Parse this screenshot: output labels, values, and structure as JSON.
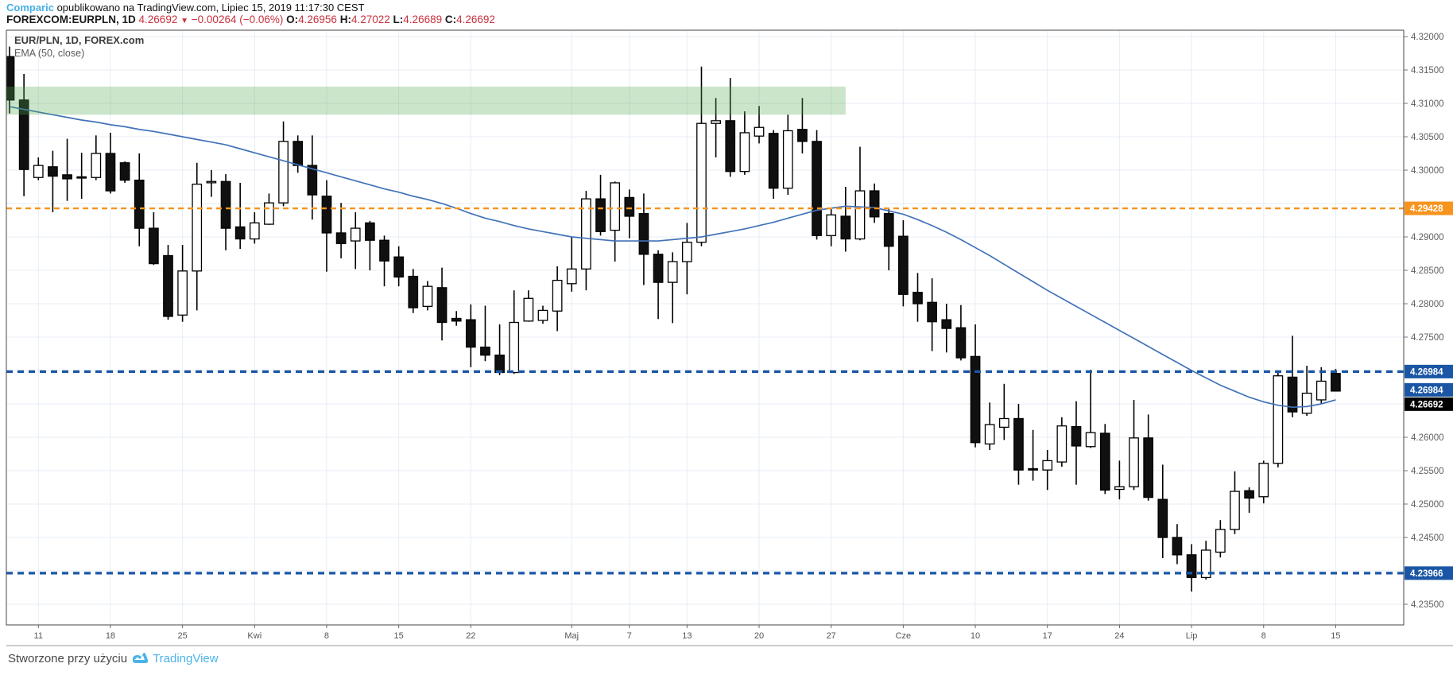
{
  "header": {
    "source_bold": "Comparic",
    "source_rest": " opublikowano na TradingView.com, Lipiec 15, 2019 11:17:30 CEST",
    "symbol_label": "FOREXCOM:EURPLN, 1D",
    "last_price": "4.26692",
    "direction_icon": "▼",
    "change": "−0.00264 (−0.06%)",
    "o_label": "O:",
    "o_value": "4.26956",
    "h_label": "H:",
    "h_value": "4.27022",
    "l_label": "L:",
    "l_value": "4.26689",
    "c_label": "C:",
    "c_value": "4.26692"
  },
  "legend": {
    "title": "EUR/PLN, 1D, FOREX.com",
    "indicator": "EMA (50, close)"
  },
  "footer": {
    "created_with": "Stworzone przy użyciu",
    "brand": "TradingView"
  },
  "colors": {
    "accent_red": "#c9313d",
    "comparic_blue": "#45b0e6",
    "tv_blue": "#4cb3ea",
    "orange_level": "#f7941e",
    "blue_level": "#1a56a5",
    "last_price_bg": "#000000",
    "ema_blue": "#4272b8",
    "grid": "#e7edf4",
    "frame": "#454545",
    "candle_up_fill": "#ffffff",
    "candle_down_fill": "#101010",
    "candle_stroke": "#000000",
    "zone_green": "rgba(80,170,80,0.30)",
    "axis_text": "#5f5f5f",
    "date_text": "#555555"
  },
  "chart_data": {
    "type": "candlestick",
    "title": "EUR/PLN, 1D, FOREX.com",
    "indicator": "EMA (50, close)",
    "ylim": [
      4.235,
      4.32
    ],
    "y_ticks": [
      4.32,
      4.315,
      4.31,
      4.305,
      4.3,
      4.295,
      4.29,
      4.285,
      4.28,
      4.275,
      4.27,
      4.265,
      4.26,
      4.255,
      4.25,
      4.245,
      4.24,
      4.235
    ],
    "y_ticks_hidden_by_labels": [
      4.295,
      4.27,
      4.265,
      4.24
    ],
    "x_labels": [
      {
        "index": 2,
        "text": "11"
      },
      {
        "index": 7,
        "text": "18"
      },
      {
        "index": 12,
        "text": "25"
      },
      {
        "index": 17,
        "text": "Kwi"
      },
      {
        "index": 22,
        "text": "8"
      },
      {
        "index": 27,
        "text": "15"
      },
      {
        "index": 32,
        "text": "22"
      },
      {
        "index": 39,
        "text": "Maj"
      },
      {
        "index": 43,
        "text": "7"
      },
      {
        "index": 47,
        "text": "13"
      },
      {
        "index": 52,
        "text": "20"
      },
      {
        "index": 57,
        "text": "27"
      },
      {
        "index": 62,
        "text": "Cze"
      },
      {
        "index": 67,
        "text": "10"
      },
      {
        "index": 72,
        "text": "17"
      },
      {
        "index": 77,
        "text": "24"
      },
      {
        "index": 82,
        "text": "Lip"
      },
      {
        "index": 87,
        "text": "8"
      },
      {
        "index": 92,
        "text": "15"
      }
    ],
    "dates": [
      "2019-03-07",
      "2019-03-08",
      "2019-03-11",
      "2019-03-12",
      "2019-03-13",
      "2019-03-14",
      "2019-03-15",
      "2019-03-18",
      "2019-03-19",
      "2019-03-20",
      "2019-03-21",
      "2019-03-22",
      "2019-03-25",
      "2019-03-26",
      "2019-03-27",
      "2019-03-28",
      "2019-03-29",
      "2019-04-01",
      "2019-04-02",
      "2019-04-03",
      "2019-04-04",
      "2019-04-05",
      "2019-04-08",
      "2019-04-09",
      "2019-04-10",
      "2019-04-11",
      "2019-04-12",
      "2019-04-15",
      "2019-04-16",
      "2019-04-17",
      "2019-04-18",
      "2019-04-19",
      "2019-04-22",
      "2019-04-23",
      "2019-04-24",
      "2019-04-25",
      "2019-04-26",
      "2019-04-29",
      "2019-04-30",
      "2019-05-01",
      "2019-05-02",
      "2019-05-03",
      "2019-05-06",
      "2019-05-07",
      "2019-05-08",
      "2019-05-09",
      "2019-05-10",
      "2019-05-13",
      "2019-05-14",
      "2019-05-15",
      "2019-05-16",
      "2019-05-17",
      "2019-05-20",
      "2019-05-21",
      "2019-05-22",
      "2019-05-23",
      "2019-05-24",
      "2019-05-27",
      "2019-05-28",
      "2019-05-29",
      "2019-05-30",
      "2019-05-31",
      "2019-06-03",
      "2019-06-04",
      "2019-06-05",
      "2019-06-06",
      "2019-06-07",
      "2019-06-10",
      "2019-06-11",
      "2019-06-12",
      "2019-06-13",
      "2019-06-14",
      "2019-06-17",
      "2019-06-18",
      "2019-06-19",
      "2019-06-20",
      "2019-06-21",
      "2019-06-24",
      "2019-06-25",
      "2019-06-26",
      "2019-06-27",
      "2019-06-28",
      "2019-07-01",
      "2019-07-02",
      "2019-07-03",
      "2019-07-04",
      "2019-07-05",
      "2019-07-08",
      "2019-07-09",
      "2019-07-10",
      "2019-07-11",
      "2019-07-12",
      "2019-07-15"
    ],
    "ohlc": [
      [
        4.317,
        4.3185,
        4.3085,
        4.3105
      ],
      [
        4.3105,
        4.3144,
        4.2961,
        4.3001
      ],
      [
        4.2989,
        4.3019,
        4.2985,
        4.3007
      ],
      [
        4.3005,
        4.3029,
        4.2937,
        4.2991
      ],
      [
        4.2993,
        4.3047,
        4.2954,
        4.2987
      ],
      [
        4.299,
        4.3026,
        4.2957,
        4.2989
      ],
      [
        4.2989,
        4.3052,
        4.2985,
        4.3025
      ],
      [
        4.3025,
        4.3056,
        4.2965,
        4.2969
      ],
      [
        4.3011,
        4.3013,
        4.2981,
        4.2985
      ],
      [
        4.2985,
        4.3025,
        4.2886,
        4.2913
      ],
      [
        4.2913,
        4.2937,
        4.2858,
        4.286
      ],
      [
        4.2872,
        4.2888,
        4.2776,
        4.2781
      ],
      [
        4.2783,
        4.2888,
        4.2773,
        4.2849
      ],
      [
        4.2849,
        4.3011,
        4.279,
        4.2979
      ],
      [
        4.2983,
        4.3,
        4.296,
        4.2983
      ],
      [
        4.2983,
        4.2994,
        4.288,
        4.2913
      ],
      [
        4.2915,
        4.2981,
        4.2882,
        4.2897
      ],
      [
        4.2897,
        4.2937,
        4.289,
        4.2921
      ],
      [
        4.2919,
        4.2965,
        4.2918,
        4.2951
      ],
      [
        4.2951,
        4.3073,
        4.2946,
        4.3043
      ],
      [
        4.3043,
        4.3052,
        4.2996,
        4.3007
      ],
      [
        4.3007,
        4.3052,
        4.2926,
        4.2963
      ],
      [
        4.2961,
        4.2985,
        4.2848,
        4.2906
      ],
      [
        4.2906,
        4.2951,
        4.2868,
        4.289
      ],
      [
        4.2894,
        4.2937,
        4.2852,
        4.2913
      ],
      [
        4.2921,
        4.2924,
        4.285,
        4.2895
      ],
      [
        4.2895,
        4.2902,
        4.2826,
        4.2864
      ],
      [
        4.287,
        4.2886,
        4.2826,
        4.284
      ],
      [
        4.2841,
        4.2852,
        4.2786,
        4.2794
      ],
      [
        4.2796,
        4.2834,
        4.279,
        4.2826
      ],
      [
        4.2824,
        4.2854,
        4.2745,
        4.2772
      ],
      [
        4.2778,
        4.2789,
        4.2767,
        4.2774
      ],
      [
        4.2776,
        4.2799,
        4.2705,
        4.2735
      ],
      [
        4.2735,
        4.2797,
        4.2714,
        4.2723
      ],
      [
        4.2723,
        4.2769,
        4.2693,
        4.2697
      ],
      [
        4.2697,
        4.282,
        4.2695,
        4.2772
      ],
      [
        4.2774,
        4.282,
        4.2773,
        4.2808
      ],
      [
        4.2775,
        4.2797,
        4.277,
        4.279
      ],
      [
        4.2789,
        4.2856,
        4.2759,
        4.2835
      ],
      [
        4.283,
        4.29,
        4.2818,
        4.2852
      ],
      [
        4.2852,
        4.2969,
        4.282,
        4.2957
      ],
      [
        4.2957,
        4.2993,
        4.2902,
        4.2908
      ],
      [
        4.291,
        4.2983,
        4.2863,
        4.2981
      ],
      [
        4.2959,
        4.2971,
        4.2898,
        4.2931
      ],
      [
        4.2935,
        4.2965,
        4.2828,
        4.2874
      ],
      [
        4.2874,
        4.288,
        4.2777,
        4.2832
      ],
      [
        4.2832,
        4.2877,
        4.2771,
        4.2863
      ],
      [
        4.2863,
        4.2921,
        4.2814,
        4.2892
      ],
      [
        4.2892,
        4.3155,
        4.2886,
        4.307
      ],
      [
        4.307,
        4.3108,
        4.3019,
        4.3074
      ],
      [
        4.3074,
        4.3138,
        4.299,
        4.2998
      ],
      [
        4.2998,
        4.3088,
        4.2993,
        4.3056
      ],
      [
        4.3051,
        4.3096,
        4.304,
        4.3064
      ],
      [
        4.3055,
        4.306,
        4.2957,
        4.2973
      ],
      [
        4.2973,
        4.3083,
        4.2963,
        4.3059
      ],
      [
        4.3061,
        4.3108,
        4.3025,
        4.3043
      ],
      [
        4.3043,
        4.306,
        4.2896,
        4.2902
      ],
      [
        4.2902,
        4.2943,
        4.2886,
        4.2933
      ],
      [
        4.2931,
        4.2975,
        4.2878,
        4.2897
      ],
      [
        4.2897,
        4.3035,
        4.2895,
        4.2969
      ],
      [
        4.2969,
        4.298,
        4.2921,
        4.293
      ],
      [
        4.2935,
        4.2943,
        4.285,
        4.2886
      ],
      [
        4.2901,
        4.2925,
        4.2796,
        4.2814
      ],
      [
        4.2817,
        4.2846,
        4.2773,
        4.28
      ],
      [
        4.2802,
        4.2838,
        4.2729,
        4.2773
      ],
      [
        4.2776,
        4.28,
        4.2727,
        4.2763
      ],
      [
        4.2764,
        4.2798,
        4.2715,
        4.2719
      ],
      [
        4.2721,
        4.2769,
        4.2585,
        4.2592
      ],
      [
        4.259,
        4.2652,
        4.2581,
        4.2619
      ],
      [
        4.2615,
        4.268,
        4.2596,
        4.2628
      ],
      [
        4.2628,
        4.265,
        4.2529,
        4.2551
      ],
      [
        4.2553,
        4.2611,
        4.2535,
        4.2551
      ],
      [
        4.2551,
        4.2581,
        4.2521,
        4.2565
      ],
      [
        4.2563,
        4.263,
        4.2556,
        4.2617
      ],
      [
        4.2616,
        4.2654,
        4.2529,
        4.2587
      ],
      [
        4.2586,
        4.2701,
        4.2584,
        4.2607
      ],
      [
        4.2606,
        4.262,
        4.2515,
        4.2521
      ],
      [
        4.2522,
        4.2565,
        4.2507,
        4.2526
      ],
      [
        4.2526,
        4.2656,
        4.2521,
        4.2599
      ],
      [
        4.2599,
        4.2634,
        4.2505,
        4.251
      ],
      [
        4.2507,
        4.2559,
        4.2419,
        4.245
      ],
      [
        4.245,
        4.247,
        4.241,
        4.2424
      ],
      [
        4.2424,
        4.244,
        4.2369,
        4.239
      ],
      [
        4.239,
        4.2445,
        4.2387,
        4.2431
      ],
      [
        4.2428,
        4.2476,
        4.242,
        4.2462
      ],
      [
        4.2462,
        4.2549,
        4.2455,
        4.2519
      ],
      [
        4.252,
        4.2525,
        4.2487,
        4.2509
      ],
      [
        4.2511,
        4.2565,
        4.2501,
        4.2561
      ],
      [
        4.2561,
        4.27,
        4.2555,
        4.2692
      ],
      [
        4.269,
        4.2752,
        4.263,
        4.2638
      ],
      [
        4.2636,
        4.2707,
        4.2632,
        4.2666
      ],
      [
        4.2656,
        4.2705,
        4.265,
        4.2684
      ],
      [
        4.26956,
        4.27022,
        4.26689,
        4.26692
      ]
    ],
    "ema50": [
      4.3095,
      4.3091,
      4.3087,
      4.3083,
      4.3079,
      4.3075,
      4.3072,
      4.3068,
      4.3065,
      4.3061,
      4.3058,
      4.3054,
      4.305,
      4.3046,
      4.3042,
      4.3038,
      4.3032,
      4.3026,
      4.302,
      4.3014,
      4.3008,
      4.3002,
      4.2996,
      4.299,
      4.2984,
      4.2978,
      4.2972,
      4.2967,
      4.2961,
      4.2956,
      4.295,
      4.2943,
      4.2935,
      4.2928,
      4.2923,
      4.2917,
      4.2912,
      4.2908,
      4.2904,
      4.29,
      4.2898,
      4.2896,
      4.2894,
      4.2894,
      4.2894,
      4.2894,
      4.2896,
      4.2898,
      4.29,
      4.2904,
      4.2908,
      4.2912,
      4.2917,
      4.2922,
      4.2928,
      4.2934,
      4.294,
      4.2943,
      4.2946,
      4.2945,
      4.2944,
      4.2939,
      4.2934,
      4.2926,
      4.2917,
      4.2907,
      4.2896,
      4.2884,
      4.2872,
      4.2859,
      4.2846,
      4.2833,
      4.282,
      4.2808,
      4.2796,
      4.2784,
      4.2772,
      4.276,
      4.2748,
      4.2736,
      4.2724,
      4.2712,
      4.27,
      4.2689,
      4.2678,
      4.2669,
      4.266,
      4.2653,
      4.2648,
      4.2645,
      4.2646,
      4.265,
      4.2656
    ],
    "levels": [
      {
        "price": 4.29428,
        "color": "#f7941e",
        "width": 2.4,
        "dash": "7 5"
      },
      {
        "price": 4.26984,
        "color": "#1a56a5",
        "width": 3.2,
        "dash": "8 6"
      },
      {
        "price": 4.23966,
        "color": "#1a56a5",
        "width": 3.2,
        "dash": "8 6"
      }
    ],
    "price_labels": [
      {
        "text": "4.29428",
        "bg": "#f7941e",
        "price": 4.29428,
        "offset": 0
      },
      {
        "text": "4.26984",
        "bg": "#1a56a5",
        "price": 4.26984,
        "offset": 0
      },
      {
        "text": "4.26984",
        "bg": "#1a56a5",
        "price": 4.26984,
        "offset": 23
      },
      {
        "text": "4.26692",
        "bg": "#000000",
        "price": 4.26984,
        "offset": 41
      },
      {
        "text": "4.23966",
        "bg": "#1a56a5",
        "price": 4.23966,
        "offset": 0
      }
    ],
    "zone": {
      "price_top": 4.3125,
      "price_bottom": 4.3083,
      "start_index": 0,
      "end_index": 58,
      "color": "rgba(80,170,80,0.30)"
    },
    "legend_position": "top-left",
    "grid": true
  }
}
